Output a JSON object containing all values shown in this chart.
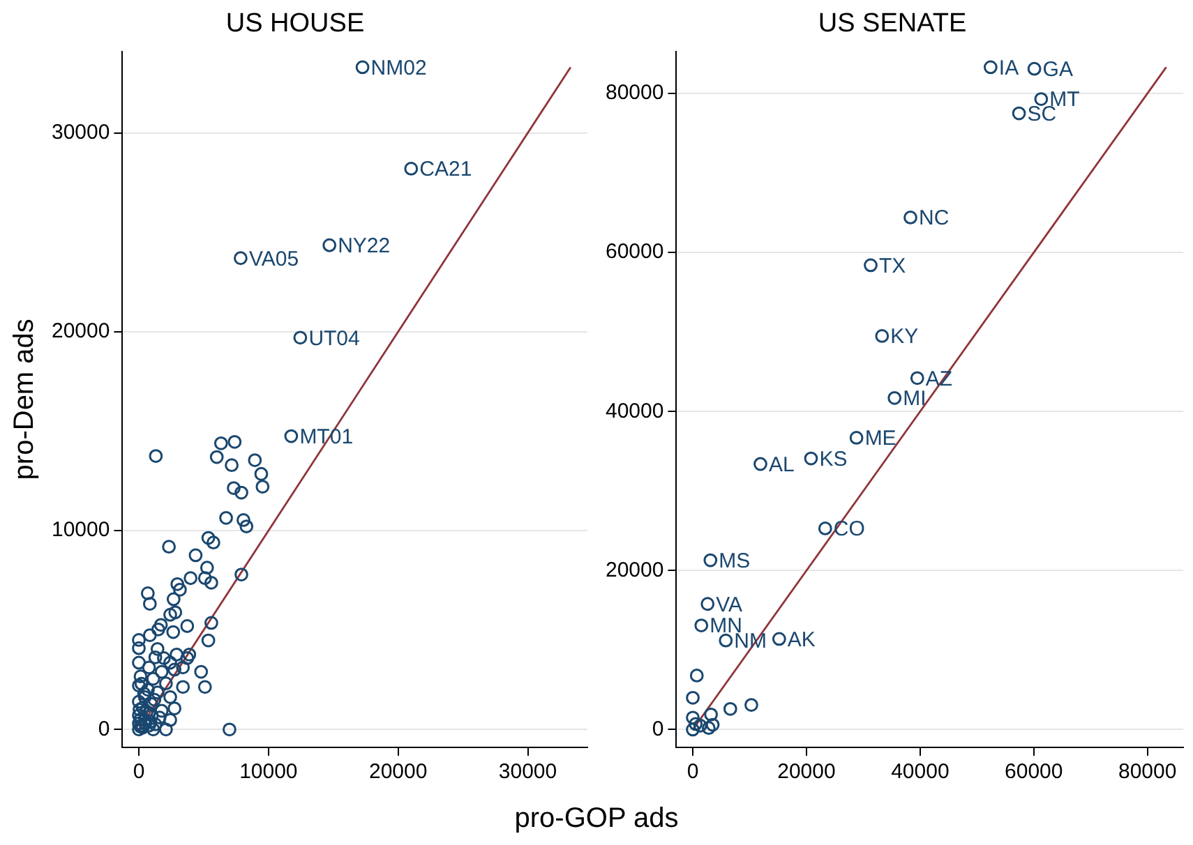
{
  "chart_data": [
    {
      "type": "scatter",
      "title": "US HOUSE",
      "xlabel": "pro-GOP ads",
      "ylabel": "pro-Dem ads",
      "xlim": [
        -1270,
        34600
      ],
      "ylim": [
        -900,
        34100
      ],
      "xticks": [
        0,
        10000,
        20000,
        30000
      ],
      "yticks": [
        0,
        10000,
        20000,
        30000
      ],
      "grid": "y",
      "legend": false,
      "marker": "circle",
      "series": [
        {
          "color": "#1a476f",
          "x": [
            17250,
            21000,
            14700,
            7850,
            12450,
            11750,
            6340,
            7390,
            1310,
            6010,
            7160,
            8950,
            9440,
            9540,
            7320,
            7910,
            6730,
            8070,
            8300,
            2320,
            5360,
            5750,
            4380,
            5260,
            5100,
            5590,
            3990,
            7910,
            2970,
            3170,
            690,
            850,
            2680,
            2810,
            2420,
            3730,
            5590,
            1700,
            1500,
            2650,
            850,
            5360,
            0,
            0,
            1440,
            2910,
            3890,
            3730,
            1270,
            1930,
            0,
            2420,
            3400,
            2750,
            4800,
            780,
            1760,
            1110,
            130,
            5100,
            3400,
            2090,
            0,
            1440,
            2420,
            2750,
            460,
            0,
            950,
            1760,
            6990,
            2090,
            1270,
            460,
            0,
            780,
            130,
            1110,
            1600,
            2420,
            200,
            300,
            500,
            100,
            800,
            600,
            300,
            1000,
            400,
            200,
            700,
            1200,
            900,
            0,
            0,
            50
          ],
          "values": [
            33300,
            28200,
            24350,
            23700,
            19700,
            14750,
            14390,
            14460,
            13750,
            13700,
            13290,
            13540,
            12850,
            12210,
            12140,
            11910,
            10640,
            10530,
            10210,
            9190,
            9630,
            9400,
            8760,
            8140,
            7610,
            7380,
            7610,
            7790,
            7310,
            7030,
            6850,
            6320,
            6550,
            5890,
            5770,
            5200,
            5360,
            5260,
            5030,
            4900,
            4740,
            4480,
            4500,
            4090,
            4050,
            3770,
            3770,
            3590,
            3630,
            3590,
            3360,
            3360,
            3120,
            3010,
            2900,
            3120,
            2900,
            2550,
            2670,
            2140,
            2140,
            2320,
            2210,
            1860,
            1630,
            1060,
            1630,
            1400,
            1290,
            940,
            0,
            0,
            260,
            480,
            710,
            830,
            140,
            0,
            600,
            480,
            200,
            100,
            300,
            500,
            200,
            900,
            1100,
            700,
            1800,
            2300,
            2000,
            1500,
            400,
            300,
            0,
            1000
          ],
          "value_labels": [
            "NM02",
            "CA21",
            "NY22",
            "VA05",
            "UT04",
            "MT01",
            null,
            null,
            null,
            null,
            null,
            null,
            null,
            null,
            null,
            null,
            null,
            null,
            null,
            null,
            null,
            null,
            null,
            null,
            null,
            null,
            null,
            null,
            null,
            null,
            null,
            null,
            null,
            null,
            null,
            null,
            null,
            null,
            null,
            null,
            null,
            null,
            null,
            null,
            null,
            null,
            null,
            null,
            null,
            null,
            null,
            null,
            null,
            null,
            null,
            null,
            null,
            null,
            null,
            null,
            null,
            null,
            null,
            null,
            null,
            null,
            null,
            null,
            null,
            null,
            null,
            null,
            null,
            null,
            null,
            null,
            null,
            null,
            null,
            null,
            null,
            null,
            null,
            null,
            null,
            null,
            null,
            null,
            null,
            null,
            null,
            null,
            null,
            null,
            null,
            null
          ]
        },
        {
          "type": "line",
          "marker": "none",
          "color": "#90353b",
          "x": [
            0,
            33300
          ],
          "values": [
            0,
            33300
          ]
        }
      ]
    },
    {
      "type": "scatter",
      "title": "US SENATE",
      "xlim": [
        -2900,
        86300
      ],
      "ylim": [
        -2240,
        85300
      ],
      "xticks": [
        0,
        20000,
        40000,
        60000,
        80000
      ],
      "yticks": [
        0,
        20000,
        40000,
        60000,
        80000
      ],
      "grid": "y",
      "legend": false,
      "marker": "circle",
      "series": [
        {
          "color": "#1a476f",
          "x": [
            52400,
            60100,
            61300,
            57400,
            38300,
            31300,
            33300,
            39500,
            35500,
            28800,
            20800,
            11900,
            23300,
            3100,
            2600,
            1500,
            5800,
            15200,
            700,
            0,
            6600,
            10300,
            3200,
            0,
            500,
            2800,
            0,
            1300,
            3500
          ],
          "values": [
            83300,
            83100,
            79300,
            77500,
            64400,
            58400,
            49500,
            44200,
            41700,
            36700,
            34100,
            33400,
            25300,
            21300,
            15800,
            13100,
            11200,
            11400,
            6800,
            4000,
            2600,
            3100,
            1900,
            1500,
            700,
            200,
            0,
            500,
            600
          ],
          "value_labels": [
            "IA",
            "GA",
            "MT",
            "SC",
            "NC",
            "TX",
            "KY",
            "AZ",
            "MI",
            "ME",
            "KS",
            "AL",
            "CO",
            "MS",
            "VA",
            "MN",
            "NM",
            "AK",
            null,
            null,
            null,
            null,
            null,
            null,
            null,
            null,
            null,
            null,
            null
          ]
        },
        {
          "type": "line",
          "marker": "none",
          "color": "#90353b",
          "x": [
            0,
            83300
          ],
          "values": [
            0,
            83300
          ]
        }
      ]
    }
  ]
}
